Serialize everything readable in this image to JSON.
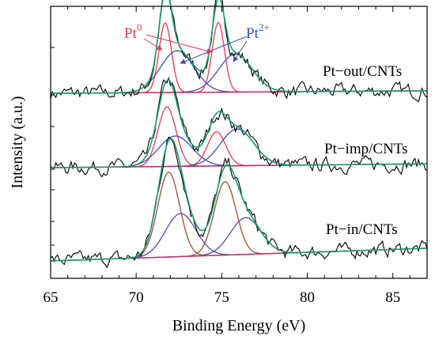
{
  "chart_data": {
    "type": "line",
    "xlabel": "Binding Energy (eV)",
    "ylabel": "Intensity (a.u.)",
    "xlim": [
      65,
      87
    ],
    "x_ticks": [
      65,
      70,
      75,
      80,
      85
    ],
    "grid": false,
    "colors": {
      "raw": "#000000",
      "envelope": "#1a9a70",
      "pt0": "#e8394f",
      "pt2": "#3c4fb8",
      "baseline": "#c0306a",
      "pt0_in": "#9a5038",
      "pt2_in": "#5a4aa8"
    },
    "annotations": [
      {
        "text": "Pt",
        "superscript": "0",
        "color": "#e8394f"
      },
      {
        "text": "Pt",
        "superscript": "2+",
        "color": "#3c4fb8"
      }
    ],
    "series": [
      {
        "name": "Pt−out/CNTs",
        "baseline_start": 0.0,
        "baseline_end": 0.02,
        "components": [
          {
            "type": "Pt0",
            "center": 71.7,
            "height": 0.55,
            "fwhm": 0.85
          },
          {
            "type": "Pt0",
            "center": 74.8,
            "height": 0.55,
            "fwhm": 0.85
          },
          {
            "type": "Pt2+",
            "center": 72.4,
            "height": 0.33,
            "fwhm": 2.3
          },
          {
            "type": "Pt2+",
            "center": 75.8,
            "height": 0.3,
            "fwhm": 2.3
          }
        ]
      },
      {
        "name": "Pt−imp/CNTs",
        "baseline_start": 0.0,
        "baseline_end": 0.03,
        "components": [
          {
            "type": "Pt0",
            "center": 71.8,
            "height": 0.47,
            "fwhm": 1.25
          },
          {
            "type": "Pt0",
            "center": 74.7,
            "height": 0.27,
            "fwhm": 1.25
          },
          {
            "type": "Pt2+",
            "center": 72.3,
            "height": 0.24,
            "fwhm": 2.3
          },
          {
            "type": "Pt2+",
            "center": 75.9,
            "height": 0.29,
            "fwhm": 2.3
          }
        ]
      },
      {
        "name": "Pt−in/CNTs",
        "baseline_start": 0.0,
        "baseline_end": 0.1,
        "components": [
          {
            "type": "Pt0",
            "center": 71.9,
            "height": 0.67,
            "fwhm": 1.5
          },
          {
            "type": "Pt0",
            "center": 75.2,
            "height": 0.58,
            "fwhm": 1.5
          },
          {
            "type": "Pt2+",
            "center": 72.6,
            "height": 0.34,
            "fwhm": 2.1
          },
          {
            "type": "Pt2+",
            "center": 76.4,
            "height": 0.29,
            "fwhm": 2.1
          }
        ]
      }
    ]
  }
}
